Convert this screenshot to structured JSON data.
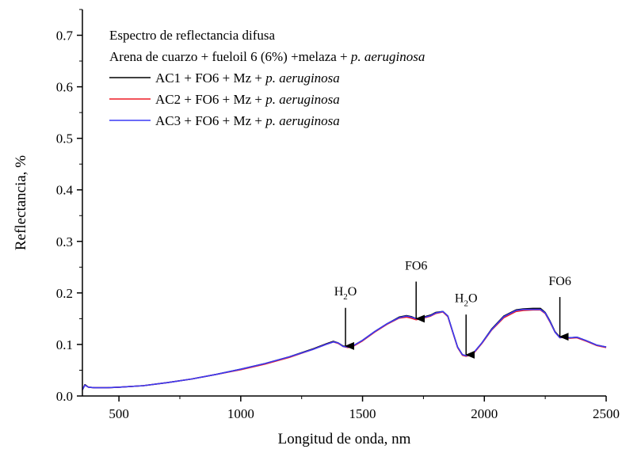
{
  "chart_data": {
    "type": "line",
    "title_lines": [
      {
        "parts": [
          {
            "text": "Espectro de reflectancia difusa",
            "italic": false
          }
        ]
      },
      {
        "parts": [
          {
            "text": "Arena de cuarzo + fueloil 6 (6%) +melaza + ",
            "italic": false
          },
          {
            "text": "p. aeruginosa",
            "italic": true
          }
        ]
      }
    ],
    "xlabel": "Longitud de onda, nm",
    "ylabel": "Reflectancia, %",
    "xlim": [
      350,
      2500
    ],
    "ylim": [
      0.0,
      0.75
    ],
    "xticks": [
      500,
      1000,
      1500,
      2000,
      2500
    ],
    "yticks": [
      0.0,
      0.1,
      0.2,
      0.3,
      0.4,
      0.5,
      0.6,
      0.7
    ],
    "ytick_labels": [
      "0.0",
      "0.1",
      "0.2",
      "0.3",
      "0.4",
      "0.5",
      "0.6",
      "0.7"
    ],
    "legend_position": "top-left",
    "series": [
      {
        "name": "AC1 + FO6 + Mz + ",
        "name_italic": "p. aeruginosa",
        "color": "#000000",
        "x": [
          350,
          360,
          375,
          400,
          450,
          500,
          600,
          700,
          800,
          900,
          1000,
          1100,
          1200,
          1300,
          1350,
          1380,
          1400,
          1420,
          1440,
          1460,
          1500,
          1550,
          1600,
          1650,
          1680,
          1700,
          1720,
          1750,
          1780,
          1800,
          1830,
          1850,
          1870,
          1890,
          1910,
          1925,
          1940,
          1960,
          1990,
          2030,
          2080,
          2130,
          2160,
          2200,
          2230,
          2250,
          2270,
          2290,
          2310,
          2330,
          2350,
          2380,
          2420,
          2460,
          2500
        ],
        "y": [
          0.012,
          0.022,
          0.017,
          0.016,
          0.016,
          0.017,
          0.02,
          0.026,
          0.033,
          0.042,
          0.052,
          0.063,
          0.076,
          0.092,
          0.101,
          0.106,
          0.103,
          0.097,
          0.095,
          0.097,
          0.108,
          0.125,
          0.14,
          0.153,
          0.156,
          0.154,
          0.15,
          0.153,
          0.157,
          0.162,
          0.164,
          0.155,
          0.125,
          0.095,
          0.08,
          0.078,
          0.08,
          0.086,
          0.103,
          0.13,
          0.155,
          0.167,
          0.169,
          0.17,
          0.17,
          0.162,
          0.145,
          0.125,
          0.114,
          0.115,
          0.113,
          0.114,
          0.107,
          0.099,
          0.095
        ]
      },
      {
        "name": "AC2 + FO6 + Mz + ",
        "name_italic": "p. aeruginosa",
        "color": "#ee1c25",
        "x": [
          350,
          360,
          375,
          400,
          450,
          500,
          600,
          700,
          800,
          900,
          1000,
          1100,
          1200,
          1300,
          1350,
          1380,
          1400,
          1420,
          1440,
          1460,
          1500,
          1550,
          1600,
          1650,
          1680,
          1700,
          1720,
          1750,
          1780,
          1800,
          1830,
          1850,
          1870,
          1890,
          1910,
          1925,
          1940,
          1960,
          1990,
          2030,
          2080,
          2130,
          2160,
          2200,
          2230,
          2250,
          2270,
          2290,
          2310,
          2330,
          2350,
          2380,
          2420,
          2460,
          2500
        ],
        "y": [
          0.012,
          0.021,
          0.017,
          0.016,
          0.016,
          0.017,
          0.02,
          0.026,
          0.033,
          0.042,
          0.051,
          0.062,
          0.075,
          0.091,
          0.1,
          0.105,
          0.102,
          0.096,
          0.094,
          0.096,
          0.107,
          0.124,
          0.139,
          0.151,
          0.153,
          0.151,
          0.148,
          0.151,
          0.155,
          0.16,
          0.163,
          0.154,
          0.124,
          0.094,
          0.079,
          0.077,
          0.079,
          0.085,
          0.102,
          0.128,
          0.152,
          0.164,
          0.166,
          0.167,
          0.167,
          0.16,
          0.143,
          0.124,
          0.113,
          0.114,
          0.112,
          0.113,
          0.106,
          0.098,
          0.094
        ]
      },
      {
        "name": "AC3 + FO6 + Mz + ",
        "name_italic": "p. aeruginosa",
        "color": "#3a3af5",
        "x": [
          350,
          360,
          375,
          400,
          450,
          500,
          600,
          700,
          800,
          900,
          1000,
          1100,
          1200,
          1300,
          1350,
          1380,
          1400,
          1420,
          1440,
          1460,
          1500,
          1550,
          1600,
          1650,
          1680,
          1700,
          1720,
          1750,
          1780,
          1800,
          1830,
          1850,
          1870,
          1890,
          1910,
          1925,
          1940,
          1960,
          1990,
          2030,
          2080,
          2130,
          2160,
          2200,
          2230,
          2250,
          2270,
          2290,
          2310,
          2330,
          2350,
          2380,
          2420,
          2460,
          2500
        ],
        "y": [
          0.012,
          0.021,
          0.017,
          0.016,
          0.016,
          0.017,
          0.02,
          0.026,
          0.033,
          0.042,
          0.052,
          0.063,
          0.076,
          0.091,
          0.1,
          0.105,
          0.103,
          0.096,
          0.095,
          0.097,
          0.108,
          0.125,
          0.14,
          0.152,
          0.155,
          0.153,
          0.15,
          0.152,
          0.156,
          0.161,
          0.164,
          0.155,
          0.125,
          0.095,
          0.08,
          0.078,
          0.08,
          0.086,
          0.103,
          0.129,
          0.154,
          0.166,
          0.168,
          0.168,
          0.168,
          0.161,
          0.144,
          0.124,
          0.113,
          0.115,
          0.113,
          0.114,
          0.107,
          0.099,
          0.095
        ]
      }
    ],
    "annotations": [
      {
        "label": "H",
        "sub": "2",
        "suffix": "O",
        "x": 1430,
        "label_y": 0.195,
        "arrow_from": 0.171,
        "arrow_to": 0.097
      },
      {
        "label": "FO6",
        "sub": "",
        "suffix": "",
        "x": 1720,
        "label_y": 0.245,
        "arrow_from": 0.222,
        "arrow_to": 0.15
      },
      {
        "label": "H",
        "sub": "2",
        "suffix": "O",
        "x": 1925,
        "label_y": 0.182,
        "arrow_from": 0.158,
        "arrow_to": 0.08
      },
      {
        "label": "FO6",
        "sub": "",
        "suffix": "",
        "x": 2310,
        "label_y": 0.215,
        "arrow_from": 0.192,
        "arrow_to": 0.115
      }
    ]
  }
}
